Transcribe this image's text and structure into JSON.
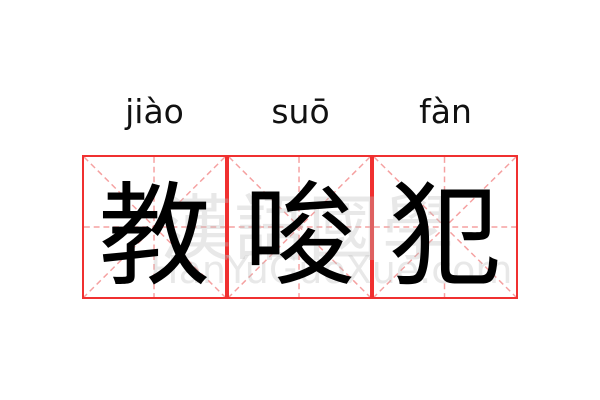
{
  "syllables": [
    {
      "pinyin": "jiào",
      "hanzi": "教"
    },
    {
      "pinyin": "suō",
      "hanzi": "唆"
    },
    {
      "pinyin": "fàn",
      "hanzi": "犯"
    }
  ],
  "watermark": {
    "chinese": "漢語國學",
    "latin": "HanYuGuoXue.com"
  },
  "colors": {
    "grid_border": "#f03030",
    "guide_lines": "#f5a0a0",
    "text": "#000000"
  }
}
